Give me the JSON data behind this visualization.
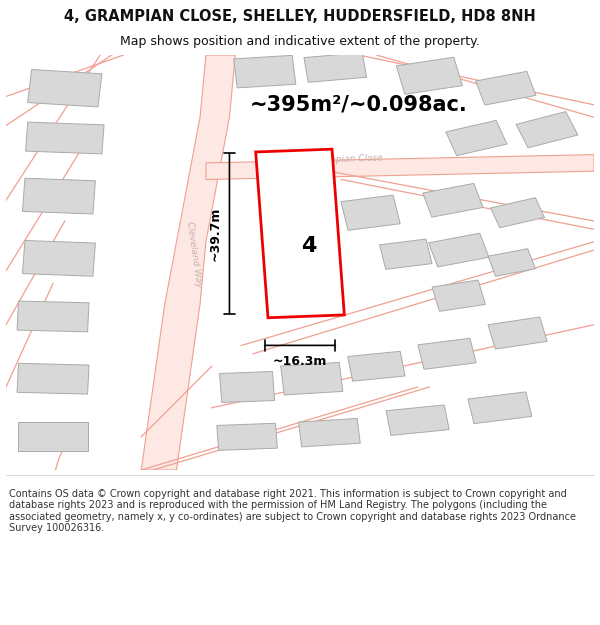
{
  "title": "4, GRAMPIAN CLOSE, SHELLEY, HUDDERSFIELD, HD8 8NH",
  "subtitle": "Map shows position and indicative extent of the property.",
  "footer": "Contains OS data © Crown copyright and database right 2021. This information is subject to Crown copyright and database rights 2023 and is reproduced with the permission of HM Land Registry. The polygons (including the associated geometry, namely x, y co-ordinates) are subject to Crown copyright and database rights 2023 Ordnance Survey 100026316.",
  "area_label": "~395m²/~0.098ac.",
  "width_label": "~16.3m",
  "height_label": "~39.7m",
  "number_label": "4",
  "map_bg": "#ffffff",
  "road_color": "#f0a090",
  "road_fill": "#fde8e4",
  "building_color": "#d8d8d8",
  "building_edge": "#aaaaaa",
  "plot_color": "#ffffff",
  "plot_edge": "#ee0000",
  "street_label_color": "#c8b0ac",
  "title_color": "#111111",
  "footer_color": "#333333"
}
